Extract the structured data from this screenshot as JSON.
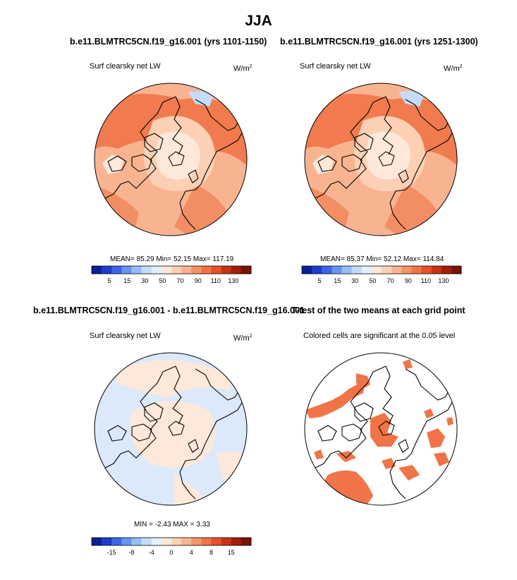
{
  "main_title": "JJA",
  "panels": {
    "p1": {
      "title": "b.e11.BLMTRC5CN.f19_g16.001 (yrs 1101-1150)",
      "left_label": "Surf clearsky net LW",
      "unit_base": "W/m",
      "unit_exp": "2",
      "stats": "MEAN=  85.29  Min=  52.15  Max= 117.19"
    },
    "p2": {
      "title": "b.e11.BLMTRC5CN.f19_g16.001 (yrs 1251-1300)",
      "left_label": "Surf clearsky net LW",
      "unit_base": "W/m",
      "unit_exp": "2",
      "stats": "MEAN=  85.37  Min=  52.12  Max= 114.84"
    },
    "p3": {
      "title": "b.e11.BLMTRC5CN.f19_g16.001 - b.e11.BLMTRC5CN.f19_g16.001",
      "left_label": "Surf clearsky net LW",
      "unit_base": "W/m",
      "unit_exp": "2",
      "stats": "MIN = -2.43 MAX =  3.33"
    },
    "p4": {
      "title": "T-test of the two means at each grid point",
      "left_label": "Colored cells are significant at the 0.05 level"
    }
  },
  "colorbars": {
    "abs": {
      "colors": [
        "#0a1f94",
        "#1e3cc8",
        "#3c64e6",
        "#6496f0",
        "#96bef5",
        "#c3dcfa",
        "#e6f0fc",
        "#fde8da",
        "#fbd0b4",
        "#f8b490",
        "#f49468",
        "#f07448",
        "#e6502a",
        "#c83214",
        "#a01e0a",
        "#781404"
      ],
      "tick_labels": [
        "5",
        "15",
        "30",
        "50",
        "70",
        "90",
        "110",
        "130"
      ]
    },
    "diff": {
      "colors": [
        "#0a1f94",
        "#1e3cc8",
        "#3c64e6",
        "#6496f0",
        "#96bef5",
        "#c3dcfa",
        "#e6f0fc",
        "#fde8da",
        "#fbd0b4",
        "#f8b490",
        "#f49468",
        "#f07448",
        "#e6502a",
        "#c83214",
        "#a01e0a",
        "#781404"
      ],
      "tick_labels": [
        "-15",
        "-8",
        "-4",
        "0",
        "4",
        "8",
        "15"
      ]
    }
  },
  "map_colors": {
    "ocean_abs_base": "#f8b490",
    "warm_band": "#f07448",
    "arctic_core": "#fde8da",
    "arctic_inner": "#fbd0b4",
    "cold_spot": "#c3dcfa",
    "diff_positive": "#fde8da",
    "diff_negative": "#dbe9fb",
    "significant": "#f07448"
  }
}
